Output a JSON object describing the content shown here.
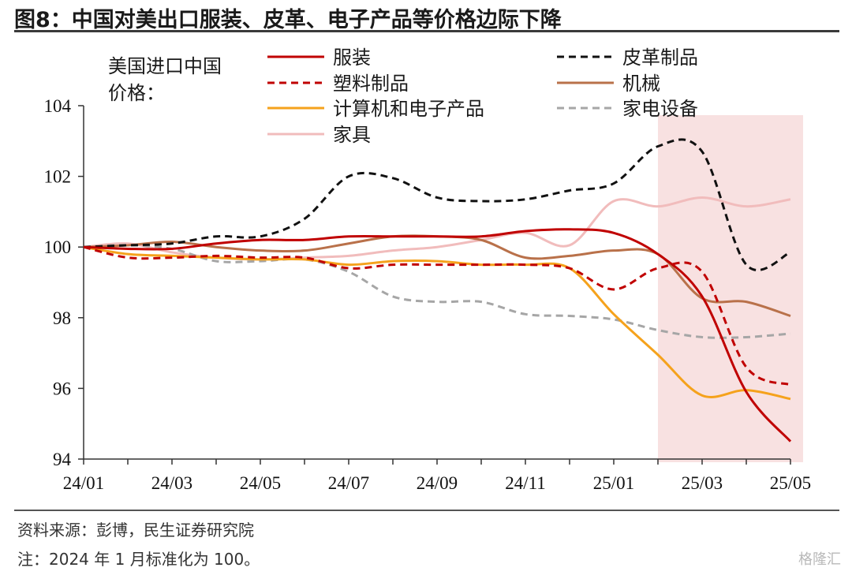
{
  "figure_title": "图8：中国对美出口服装、皮革、电子产品等价格边际下降",
  "source_note": "资料来源：彭博，民生证券研究院",
  "footnote": "注：2024 年 1 月标准化为 100。",
  "watermark": "格隆汇",
  "chart_data": {
    "type": "line",
    "ylabel": "美国进口中国价格：",
    "ylim": [
      94,
      104
    ],
    "yticks": [
      94,
      96,
      98,
      100,
      102,
      104
    ],
    "x": [
      "24/01",
      "24/02",
      "24/03",
      "24/04",
      "24/05",
      "24/06",
      "24/07",
      "24/08",
      "24/09",
      "24/10",
      "24/11",
      "24/12",
      "25/01",
      "25/02",
      "25/03",
      "25/04",
      "25/05"
    ],
    "xtick_labels": [
      "24/01",
      "24/03",
      "24/05",
      "24/07",
      "24/09",
      "24/11",
      "25/01",
      "25/03",
      "25/05"
    ],
    "highlight": {
      "from": "25/02",
      "to": "25/05",
      "color": "#f8e1e1"
    },
    "legend_placement": "top",
    "series": [
      {
        "name": "服装",
        "color": "#c00000",
        "dash": "solid",
        "values": [
          100,
          99.95,
          99.95,
          100.1,
          100.2,
          100.2,
          100.3,
          100.3,
          100.3,
          100.3,
          100.45,
          100.5,
          100.4,
          99.8,
          98.6,
          95.9,
          94.5
        ]
      },
      {
        "name": "皮革制品",
        "color": "#111111",
        "dash": "dashed",
        "values": [
          100,
          100.05,
          100.1,
          100.3,
          100.3,
          100.8,
          102.0,
          101.95,
          101.4,
          101.3,
          101.35,
          101.6,
          101.8,
          102.85,
          102.7,
          99.5,
          99.85
        ]
      },
      {
        "name": "塑料制品",
        "color": "#c00000",
        "dash": "dashed",
        "values": [
          100,
          99.7,
          99.7,
          99.75,
          99.7,
          99.7,
          99.4,
          99.5,
          99.5,
          99.5,
          99.5,
          99.4,
          98.8,
          99.4,
          99.3,
          96.6,
          96.1
        ]
      },
      {
        "name": "机械",
        "color": "#b9714a",
        "dash": "solid",
        "values": [
          100,
          100.05,
          100.15,
          100.0,
          99.9,
          99.9,
          100.1,
          100.3,
          100.3,
          100.2,
          99.7,
          99.75,
          99.9,
          99.8,
          98.55,
          98.45,
          98.05
        ]
      },
      {
        "name": "计算机和电子产品",
        "color": "#f5a21c",
        "dash": "solid",
        "values": [
          100,
          99.8,
          99.75,
          99.7,
          99.65,
          99.65,
          99.5,
          99.6,
          99.6,
          99.5,
          99.5,
          99.4,
          98.1,
          96.95,
          95.8,
          95.95,
          95.7
        ]
      },
      {
        "name": "家电设备",
        "color": "#a6a6a6",
        "dash": "dashed",
        "values": [
          100,
          100.05,
          99.95,
          99.6,
          99.6,
          99.65,
          99.3,
          98.6,
          98.45,
          98.45,
          98.1,
          98.05,
          97.95,
          97.65,
          97.45,
          97.45,
          97.55
        ]
      },
      {
        "name": "家具",
        "color": "#f1bcbc",
        "dash": "solid",
        "values": [
          100,
          100.1,
          99.85,
          99.7,
          99.65,
          99.7,
          99.75,
          99.9,
          100.0,
          100.2,
          100.4,
          100.05,
          101.3,
          101.15,
          101.4,
          101.15,
          101.35
        ]
      }
    ]
  }
}
